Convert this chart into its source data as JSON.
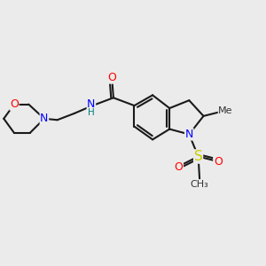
{
  "bg_color": "#ebebeb",
  "bond_color": "#1a1a1a",
  "bond_width": 1.5,
  "atom_colors": {
    "N": "#0000ff",
    "O": "#ff0000",
    "S": "#cccc00",
    "NH_color": "#008080"
  },
  "figsize": [
    3.0,
    3.0
  ],
  "dpi": 100,
  "xlim": [
    0,
    10
  ],
  "ylim": [
    0,
    10
  ]
}
